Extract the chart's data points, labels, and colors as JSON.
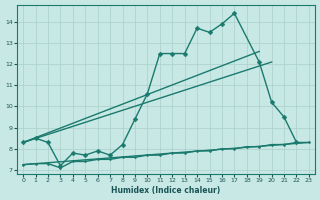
{
  "bg_color": "#c8e8e5",
  "line_color": "#1a7a6e",
  "grid_color": "#aacfcc",
  "xlabel": "Humidex (Indice chaleur)",
  "xlim": [
    -0.5,
    23.5
  ],
  "ylim": [
    6.8,
    14.8
  ],
  "xticks": [
    0,
    1,
    2,
    3,
    4,
    5,
    6,
    7,
    8,
    9,
    10,
    11,
    12,
    13,
    14,
    15,
    16,
    17,
    18,
    19,
    20,
    21,
    22,
    23
  ],
  "yticks": [
    7,
    8,
    9,
    10,
    11,
    12,
    13,
    14
  ],
  "main_x": [
    0,
    1,
    2,
    3,
    4,
    5,
    6,
    7,
    8,
    9,
    10,
    11,
    12,
    13,
    14,
    15,
    16,
    17,
    19,
    20,
    21,
    22
  ],
  "main_y": [
    8.3,
    8.5,
    8.3,
    7.2,
    7.8,
    7.7,
    7.9,
    7.7,
    8.2,
    9.4,
    10.6,
    12.5,
    12.5,
    12.5,
    13.7,
    13.5,
    13.9,
    14.4,
    12.1,
    10.2,
    9.5,
    8.3
  ],
  "line1_x": [
    0,
    19
  ],
  "line1_y": [
    8.3,
    12.6
  ],
  "line2_x": [
    0,
    20
  ],
  "line2_y": [
    8.3,
    12.1
  ],
  "line3_x": [
    0,
    23
  ],
  "line3_y": [
    7.25,
    8.3
  ],
  "bottom_x": [
    0,
    1,
    2,
    3,
    4,
    5,
    6,
    7,
    8,
    9,
    10,
    11,
    12,
    13,
    14,
    15,
    16,
    17,
    18,
    19,
    20,
    21,
    22,
    23
  ],
  "bottom_y": [
    7.25,
    7.3,
    7.3,
    7.1,
    7.4,
    7.4,
    7.5,
    7.5,
    7.6,
    7.6,
    7.7,
    7.7,
    7.8,
    7.8,
    7.9,
    7.9,
    8.0,
    8.0,
    8.1,
    8.1,
    8.2,
    8.2,
    8.3,
    8.3
  ]
}
